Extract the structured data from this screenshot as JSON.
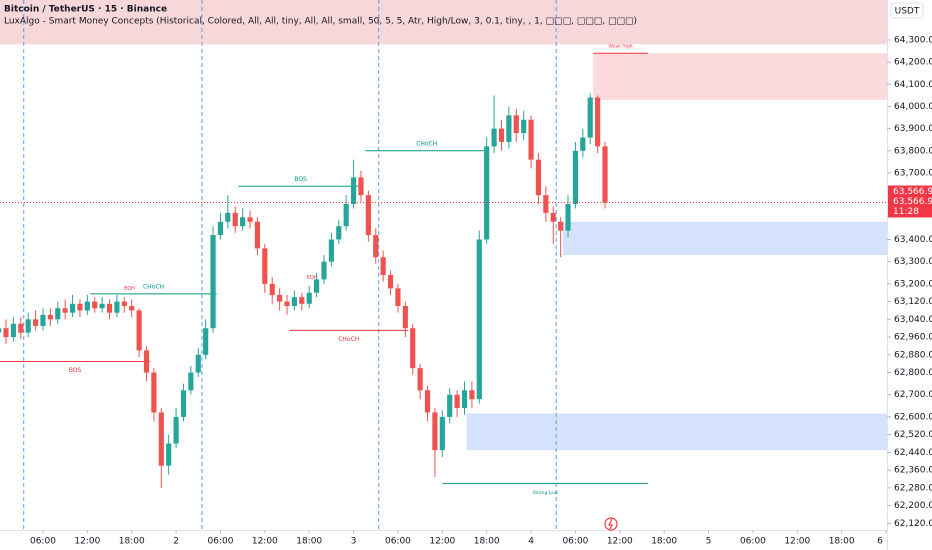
{
  "chart_data": {
    "type": "candlestick",
    "title": "Bitcoin / TetherUS · 15 · Binance",
    "subtitle": "LuxAlgo - Smart Money Concepts (Historical, Colored, All, All, tiny, All, All, small, 50, 5, 5, Atr, High/Low, 3, 0.1, tiny, , 1, □□□, □□□, □□□)",
    "currency": "USDT",
    "up_color": "#26a69a",
    "down_color": "#ef5350",
    "x": [
      0,
      1,
      2,
      3,
      4,
      5,
      6,
      7,
      8,
      9,
      10,
      11,
      12,
      13,
      14,
      15,
      16,
      17,
      18,
      19,
      20,
      21,
      22,
      23,
      24,
      25,
      26,
      27,
      28,
      29,
      30,
      31,
      32,
      33,
      34,
      35,
      36,
      37,
      38,
      39,
      40,
      41,
      42,
      43,
      44,
      45,
      46,
      47,
      48,
      49,
      50,
      51,
      52,
      53,
      54,
      55,
      56,
      57,
      58,
      59,
      60,
      61,
      62,
      63,
      64,
      65,
      66,
      67,
      68,
      69,
      70,
      71,
      72,
      73,
      74,
      75,
      76,
      77,
      78,
      79,
      80,
      81,
      82
    ],
    "open": [
      62980,
      63000,
      62960,
      63020,
      62980,
      63040,
      63010,
      63060,
      63040,
      63090,
      63070,
      63110,
      63080,
      63120,
      63090,
      63110,
      63070,
      63120,
      63100,
      63080,
      62900,
      62800,
      62620,
      62380,
      62480,
      62600,
      62720,
      62800,
      62880,
      63000,
      63420,
      63480,
      63520,
      63460,
      63500,
      63480,
      63360,
      63200,
      63150,
      63120,
      63100,
      63140,
      63110,
      63160,
      63220,
      63300,
      63400,
      63460,
      63560,
      63680,
      63600,
      63420,
      63320,
      63240,
      63180,
      63100,
      63000,
      62820,
      62720,
      62620,
      62450,
      62600,
      62700,
      62640,
      62720,
      62680,
      63400,
      63820,
      63900,
      63840,
      63960,
      63880,
      63940,
      63760,
      63600,
      63520,
      63480,
      63440,
      63560,
      63800,
      63860,
      64040,
      63820
    ],
    "high": [
      63030,
      63040,
      63050,
      63050,
      63070,
      63080,
      63090,
      63090,
      63120,
      63130,
      63150,
      63130,
      63150,
      63140,
      63140,
      63130,
      63150,
      63140,
      63130,
      63090,
      62920,
      62820,
      62640,
      62520,
      62640,
      62750,
      62830,
      62910,
      63040,
      63460,
      63520,
      63600,
      63550,
      63540,
      63530,
      63500,
      63380,
      63230,
      63180,
      63150,
      63170,
      63160,
      63190,
      63250,
      63330,
      63430,
      63490,
      63600,
      63760,
      63710,
      63620,
      63450,
      63350,
      63260,
      63200,
      63120,
      63020,
      62840,
      62740,
      62640,
      62630,
      62730,
      62720,
      62760,
      62760,
      63440,
      63860,
      64050,
      63940,
      64000,
      63990,
      63980,
      63960,
      63790,
      63640,
      63550,
      63500,
      63600,
      63840,
      63900,
      64060,
      64050,
      63840
    ],
    "low": [
      62950,
      62930,
      62940,
      62950,
      62960,
      62990,
      62990,
      63010,
      63020,
      63040,
      63050,
      63050,
      63060,
      63070,
      63070,
      63040,
      63050,
      63070,
      63050,
      62870,
      62760,
      62580,
      62280,
      62340,
      62460,
      62580,
      62700,
      62780,
      62860,
      62980,
      63400,
      63450,
      63430,
      63440,
      63450,
      63330,
      63160,
      63110,
      63080,
      63060,
      63080,
      63080,
      63090,
      63140,
      63200,
      63280,
      63380,
      63440,
      63540,
      63570,
      63390,
      63290,
      63210,
      63150,
      63070,
      62960,
      62790,
      62680,
      62580,
      62330,
      62420,
      62570,
      62600,
      62610,
      62640,
      62660,
      63380,
      63790,
      63800,
      63810,
      63840,
      63850,
      63720,
      63560,
      63480,
      63380,
      63320,
      63410,
      63540,
      63770,
      63830,
      63790,
      63540
    ],
    "close": [
      63000,
      62960,
      63020,
      62980,
      63040,
      63010,
      63060,
      63040,
      63090,
      63070,
      63110,
      63080,
      63120,
      63090,
      63110,
      63070,
      63120,
      63100,
      63080,
      62900,
      62800,
      62620,
      62380,
      62480,
      62600,
      62720,
      62800,
      62880,
      63000,
      63420,
      63480,
      63520,
      63460,
      63500,
      63480,
      63360,
      63200,
      63150,
      63120,
      63100,
      63140,
      63110,
      63160,
      63220,
      63300,
      63400,
      63460,
      63560,
      63680,
      63600,
      63420,
      63320,
      63240,
      63180,
      63100,
      63000,
      62820,
      62720,
      62620,
      62450,
      62600,
      62700,
      62640,
      62720,
      62680,
      63400,
      63820,
      63900,
      63840,
      63960,
      63880,
      63940,
      63760,
      63600,
      63520,
      63480,
      63440,
      63560,
      63800,
      63860,
      64040,
      63820,
      63566.94
    ],
    "xlim": [
      0.19,
      120.13
    ],
    "ylim": [
      62090,
      64480
    ],
    "xticks": [
      {
        "value": 6,
        "label": "06:00"
      },
      {
        "value": 12,
        "label": "12:00"
      },
      {
        "value": 18,
        "label": "18:00"
      },
      {
        "value": 24,
        "label": "2"
      },
      {
        "value": 30,
        "label": "06:00"
      },
      {
        "value": 36,
        "label": "12:00"
      },
      {
        "value": 42,
        "label": "18:00"
      },
      {
        "value": 48,
        "label": "3"
      },
      {
        "value": 54,
        "label": "06:00"
      },
      {
        "value": 60,
        "label": "12:00"
      },
      {
        "value": 66,
        "label": "18:00"
      },
      {
        "value": 72,
        "label": "4"
      },
      {
        "value": 78,
        "label": "06:00"
      },
      {
        "value": 84,
        "label": "12:00"
      },
      {
        "value": 90,
        "label": "18:00"
      },
      {
        "value": 96,
        "label": "5"
      },
      {
        "value": 102,
        "label": "06:00"
      },
      {
        "value": 108,
        "label": "12:00"
      },
      {
        "value": 114,
        "label": "18:00"
      },
      {
        "value": 120,
        "label": "6"
      }
    ],
    "yticks": [
      {
        "value": 64300,
        "label": "64,300.00"
      },
      {
        "value": 64200,
        "label": "64,200.00"
      },
      {
        "value": 64100,
        "label": "64,100.00"
      },
      {
        "value": 64000,
        "label": "64,000.00"
      },
      {
        "value": 63900,
        "label": "63,900.00"
      },
      {
        "value": 63800,
        "label": "63,800.00"
      },
      {
        "value": 63700,
        "label": "63,700.00"
      },
      {
        "value": 63400,
        "label": "63,400.00"
      },
      {
        "value": 63300,
        "label": "63,300.00"
      },
      {
        "value": 63200,
        "label": "63,200.00"
      },
      {
        "value": 63120,
        "label": "63,120.00"
      },
      {
        "value": 63040,
        "label": "63,040.00"
      },
      {
        "value": 62960,
        "label": "62,960.00"
      },
      {
        "value": 62880,
        "label": "62,880.00"
      },
      {
        "value": 62800,
        "label": "62,800.00"
      },
      {
        "value": 62700,
        "label": "62,700.00"
      },
      {
        "value": 62600,
        "label": "62,600.00"
      },
      {
        "value": 62520,
        "label": "62,520.00"
      },
      {
        "value": 62440,
        "label": "62,440.00"
      },
      {
        "value": 62360,
        "label": "62,360.00"
      },
      {
        "value": 62280,
        "label": "62,280.00"
      },
      {
        "value": 62200,
        "label": "62,200.00"
      },
      {
        "value": 62120,
        "label": "62,120.00"
      }
    ],
    "last_price": {
      "value": 63566.94,
      "label": "63,566.94"
    },
    "countdown": "11:28",
    "session_lines": [
      3.4,
      27.5,
      51.4,
      75.4
    ],
    "zones": [
      {
        "x0": 0.19,
        "x1": 120.13,
        "y0": 64280,
        "y1": 64480,
        "color": "#f8d7da"
      },
      {
        "x0": 80.4,
        "x1": 120.13,
        "y0": 64030,
        "y1": 64240,
        "color": "#fadadd"
      },
      {
        "x0": 76.3,
        "x1": 120.13,
        "y0": 63330,
        "y1": 63480,
        "color": "#d4e3fb"
      },
      {
        "x0": 63.3,
        "x1": 120.13,
        "y0": 62450,
        "y1": 62615,
        "color": "#d4e3fb"
      }
    ],
    "structures": [
      {
        "label": "BOS",
        "price": 62850,
        "x0": 0.19,
        "x1": 20.5,
        "color": "#f23645",
        "label_pos": "below"
      },
      {
        "label": "CHoCH",
        "price": 63155,
        "x0": 12.4,
        "x1": 29.5,
        "color": "#089981",
        "label_pos": "above"
      },
      {
        "label": "BOS",
        "price": 63640,
        "x0": 32.4,
        "x1": 49.3,
        "color": "#089981",
        "label_pos": "above"
      },
      {
        "label": "CHoCH",
        "price": 62990,
        "x0": 39.3,
        "x1": 55.4,
        "color": "#f23645",
        "label_pos": "below"
      },
      {
        "label": "CHoCH",
        "price": 63800,
        "x0": 49.6,
        "x1": 66.2,
        "color": "#089981",
        "label_pos": "above"
      },
      {
        "label": "Weak High",
        "price": 64240,
        "x0": 80.4,
        "x1": 87.8,
        "color": "#f23645",
        "label_pos": "above"
      },
      {
        "label": "Strong Low",
        "price": 62300,
        "x0": 60.0,
        "x1": 87.8,
        "color": "#089981",
        "label_pos": "below"
      }
    ],
    "tags": [
      {
        "label": "EQH",
        "x": 17.7,
        "price": 63160,
        "color": "#f23645"
      },
      {
        "label": "EQH",
        "x": 42.4,
        "price": 63210,
        "color": "#f23645"
      }
    ]
  }
}
